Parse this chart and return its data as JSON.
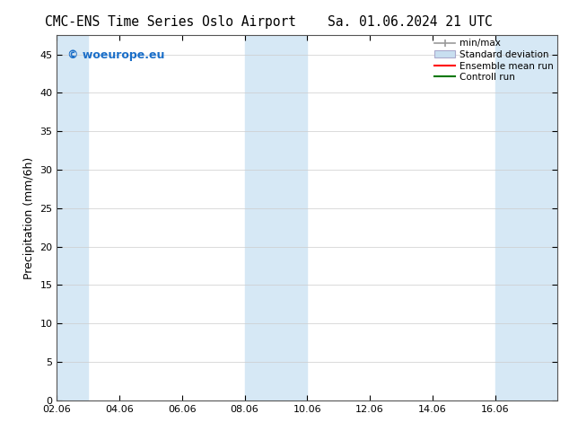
{
  "title_left": "CMC-ENS Time Series Oslo Airport",
  "title_right": "Sa. 01.06.2024 21 UTC",
  "ylabel": "Precipitation (mm/6h)",
  "xlabel": "",
  "ylim": [
    0,
    47.5
  ],
  "yticks": [
    0,
    5,
    10,
    15,
    20,
    25,
    30,
    35,
    40,
    45
  ],
  "xlim_start": 0,
  "xlim_end": 16,
  "xtick_labels": [
    "02.06",
    "04.06",
    "06.06",
    "08.06",
    "10.06",
    "12.06",
    "14.06",
    "16.06"
  ],
  "xtick_positions": [
    0,
    2,
    4,
    6,
    8,
    10,
    12,
    14
  ],
  "shaded_bands": [
    {
      "x_start": 0.0,
      "x_end": 1.0
    },
    {
      "x_start": 6.0,
      "x_end": 8.0
    },
    {
      "x_start": 14.0,
      "x_end": 16.0
    }
  ],
  "band_color": "#d6e8f5",
  "watermark_text": "© woeurope.eu",
  "watermark_color": "#1a6ec8",
  "bg_color": "#ffffff",
  "grid_color": "#cccccc",
  "title_fontsize": 10.5,
  "axis_label_fontsize": 9,
  "tick_fontsize": 8,
  "legend_fontsize": 7.5,
  "minmax_color": "#999999",
  "stddev_color": "#c8dff0",
  "stddev_edge_color": "#aaaacc",
  "ensemble_color": "#ff0000",
  "control_color": "#007700"
}
